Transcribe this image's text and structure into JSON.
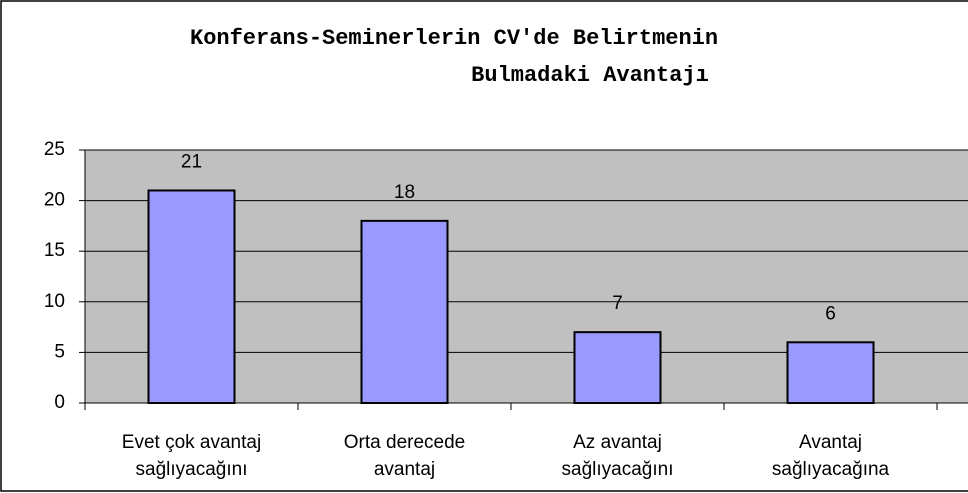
{
  "chart_data": {
    "type": "bar",
    "title": [
      "Konferans-Seminerlerin CV'de Belirtmenin",
      "Bulmadaki Avantajı"
    ],
    "categories": [
      [
        "Evet çok avantaj",
        "sağlıyacağını"
      ],
      [
        "Orta derecede",
        "avantaj"
      ],
      [
        "Az avantaj",
        "sağlıyacağını"
      ],
      [
        "Avantaj",
        "sağlıyacağına"
      ]
    ],
    "values": [
      21,
      18,
      7,
      6
    ],
    "color": "#9999ff",
    "ylim": [
      0,
      25
    ],
    "yticks": [
      0,
      5,
      10,
      15,
      20,
      25
    ],
    "grid": true
  }
}
